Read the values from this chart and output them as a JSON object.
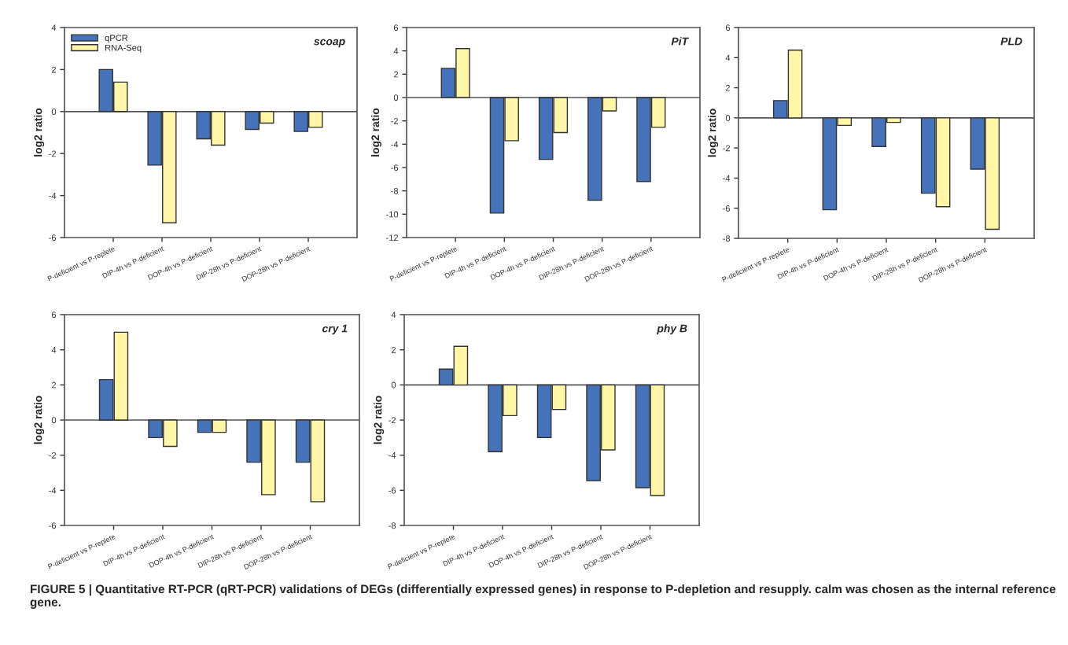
{
  "chart_data": [
    {
      "type": "bar",
      "title": "scoap",
      "ylabel": "log2 ratio",
      "categories": [
        "P-deficient vs P-replete",
        "DIP-4h vs P-deficient",
        "DOP-4h vs P-deficient",
        "DIP-28h vs P-deficient",
        "DOP-28h vs P-deficient"
      ],
      "series": [
        {
          "name": "qPCR",
          "color": "#4572b9",
          "values": [
            2.0,
            -2.55,
            -1.3,
            -0.85,
            -0.95
          ]
        },
        {
          "name": "RNA-Seq",
          "color": "#fff6a8",
          "values": [
            1.4,
            -5.3,
            -1.6,
            -0.55,
            -0.75
          ]
        }
      ],
      "ylim": [
        -6,
        4
      ],
      "yticks": [
        -6,
        -4,
        -2,
        0,
        2,
        4
      ],
      "ref_lines": [
        {
          "axis": "y",
          "value": 0
        }
      ],
      "legend": "top left",
      "grid": false
    },
    {
      "type": "bar",
      "title": "PiT",
      "ylabel": "log2 ratio",
      "categories": [
        "P-deficient vs P-replete",
        "DIP-4h vs P-deficient",
        "DOP-4h vs P-deficient",
        "DIP-28h vs P-deficient",
        "DOP-28h vs P-deficient"
      ],
      "series": [
        {
          "color": "#4572b9",
          "values": [
            2.5,
            -9.9,
            -5.3,
            -8.8,
            -7.2
          ]
        },
        {
          "color": "#fff6a8",
          "values": [
            4.2,
            -3.7,
            -3.0,
            -1.15,
            -2.55
          ]
        }
      ],
      "ylim": [
        -12,
        6
      ],
      "yticks": [
        -12,
        -10,
        -8,
        -6,
        -4,
        -2,
        0,
        2,
        4,
        6
      ],
      "ref_lines": [
        {
          "axis": "y",
          "value": 0
        }
      ],
      "grid": false
    },
    {
      "type": "bar",
      "title": "PLD",
      "ylabel": "log2 ratio",
      "categories": [
        "P-deficient vs P-replete",
        "DIP-4h vs P-deficient",
        "DOP-4h vs P-deficient",
        "DIP-28h vs P-deficient",
        "DOP-28h vs P-deficient"
      ],
      "series": [
        {
          "color": "#4572b9",
          "values": [
            1.15,
            -6.1,
            -1.9,
            -5.0,
            -3.4
          ]
        },
        {
          "color": "#fff6a8",
          "values": [
            4.5,
            -0.5,
            -0.3,
            -5.9,
            -7.4
          ]
        }
      ],
      "ylim": [
        -8,
        6
      ],
      "yticks": [
        -8,
        -6,
        -4,
        -2,
        0,
        2,
        4,
        6
      ],
      "ref_lines": [
        {
          "axis": "y",
          "value": 0
        }
      ],
      "grid": false
    },
    {
      "type": "bar",
      "title": "cry 1",
      "ylabel": "log2 ratio",
      "categories": [
        "P-deficient vs P-replete",
        "DIP-4h vs P-deficient",
        "DOP-4h vs P-deficient",
        "DIP-28h vs P-deficient",
        "DOP-28h vs P-deficient"
      ],
      "series": [
        {
          "color": "#4572b9",
          "values": [
            2.3,
            -1.0,
            -0.7,
            -2.4,
            -2.4
          ]
        },
        {
          "color": "#fff6a8",
          "values": [
            5.0,
            -1.5,
            -0.7,
            -4.25,
            -4.65
          ]
        }
      ],
      "ylim": [
        -6,
        6
      ],
      "yticks": [
        -6,
        -4,
        -2,
        0,
        2,
        4,
        6
      ],
      "ref_lines": [
        {
          "axis": "y",
          "value": 0
        }
      ],
      "grid": false
    },
    {
      "type": "bar",
      "title": "phy B",
      "ylabel": "log2 ratio",
      "categories": [
        "P-deficient vs P-replete",
        "DIP-4h vs P-deficient",
        "DOP-4h vs P-deficient",
        "DIP-28h vs P-deficient",
        "DOP-28h vs P-deficient"
      ],
      "series": [
        {
          "color": "#4572b9",
          "values": [
            0.9,
            -3.8,
            -3.0,
            -5.45,
            -5.85
          ]
        },
        {
          "color": "#fff6a8",
          "values": [
            2.2,
            -1.75,
            -1.4,
            -3.7,
            -6.3
          ]
        }
      ],
      "ylim": [
        -8,
        4
      ],
      "yticks": [
        -8,
        -6,
        -4,
        -2,
        0,
        2,
        4
      ],
      "ref_lines": [
        {
          "axis": "y",
          "value": 0
        }
      ],
      "grid": false,
      "annotations": [
        "FIGURE 5 | Quantitative RT-PCR (qRT-PCR) validations of DEGs (differentially expressed genes) in response to P-depletion and resupply. calm was chosen as the internal reference gene."
      ]
    }
  ]
}
